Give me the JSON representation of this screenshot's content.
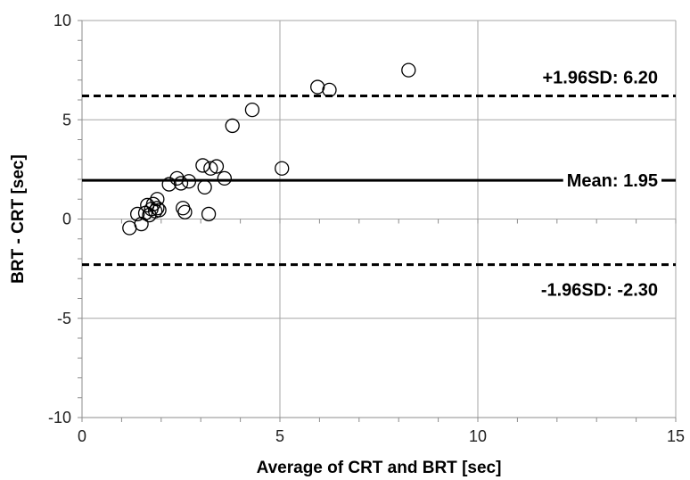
{
  "chart_data": {
    "type": "scatter",
    "title": "",
    "xlabel": "Average of CRT and BRT [sec]",
    "ylabel": "BRT - CRT [sec]",
    "xlim": [
      0,
      15
    ],
    "ylim": [
      -10,
      10
    ],
    "xticks": [
      0,
      5,
      10,
      15
    ],
    "yticks": [
      -10,
      -5,
      0,
      5,
      10
    ],
    "x_tick_labels": [
      "0",
      "5",
      "10",
      "15"
    ],
    "y_tick_labels": [
      "-10",
      "-5",
      "0",
      "5",
      "10"
    ],
    "grid": true,
    "legend": "none",
    "marker": "open-circle",
    "points": [
      {
        "x": 1.2,
        "y": -0.45
      },
      {
        "x": 1.4,
        "y": 0.25
      },
      {
        "x": 1.5,
        "y": -0.25
      },
      {
        "x": 1.6,
        "y": 0.3
      },
      {
        "x": 1.65,
        "y": 0.7
      },
      {
        "x": 1.7,
        "y": 0.2
      },
      {
        "x": 1.75,
        "y": 0.5
      },
      {
        "x": 1.8,
        "y": 0.75
      },
      {
        "x": 1.85,
        "y": 0.4
      },
      {
        "x": 1.9,
        "y": 0.55
      },
      {
        "x": 1.9,
        "y": 1.0
      },
      {
        "x": 1.95,
        "y": 0.45
      },
      {
        "x": 2.2,
        "y": 1.75
      },
      {
        "x": 2.4,
        "y": 2.05
      },
      {
        "x": 2.5,
        "y": 1.8
      },
      {
        "x": 2.55,
        "y": 0.55
      },
      {
        "x": 2.6,
        "y": 0.35
      },
      {
        "x": 2.7,
        "y": 1.9
      },
      {
        "x": 3.05,
        "y": 2.7
      },
      {
        "x": 3.1,
        "y": 1.6
      },
      {
        "x": 3.2,
        "y": 0.25
      },
      {
        "x": 3.25,
        "y": 2.55
      },
      {
        "x": 3.4,
        "y": 2.65
      },
      {
        "x": 3.6,
        "y": 2.05
      },
      {
        "x": 3.8,
        "y": 4.7
      },
      {
        "x": 4.3,
        "y": 5.5
      },
      {
        "x": 5.05,
        "y": 2.55
      },
      {
        "x": 5.95,
        "y": 6.65
      },
      {
        "x": 6.25,
        "y": 6.5
      },
      {
        "x": 8.25,
        "y": 7.5
      }
    ],
    "reference_lines": [
      {
        "label": "+1.96SD: 6.20",
        "y": 6.2,
        "style": "dashed"
      },
      {
        "label": "Mean: 1.95",
        "y": 1.95,
        "style": "solid"
      },
      {
        "label": "-1.96SD: -2.30",
        "y": -2.3,
        "style": "dashed"
      }
    ],
    "colors": {
      "points": "#000000",
      "lines": "#000000",
      "grid": "#a6a6a6"
    }
  }
}
